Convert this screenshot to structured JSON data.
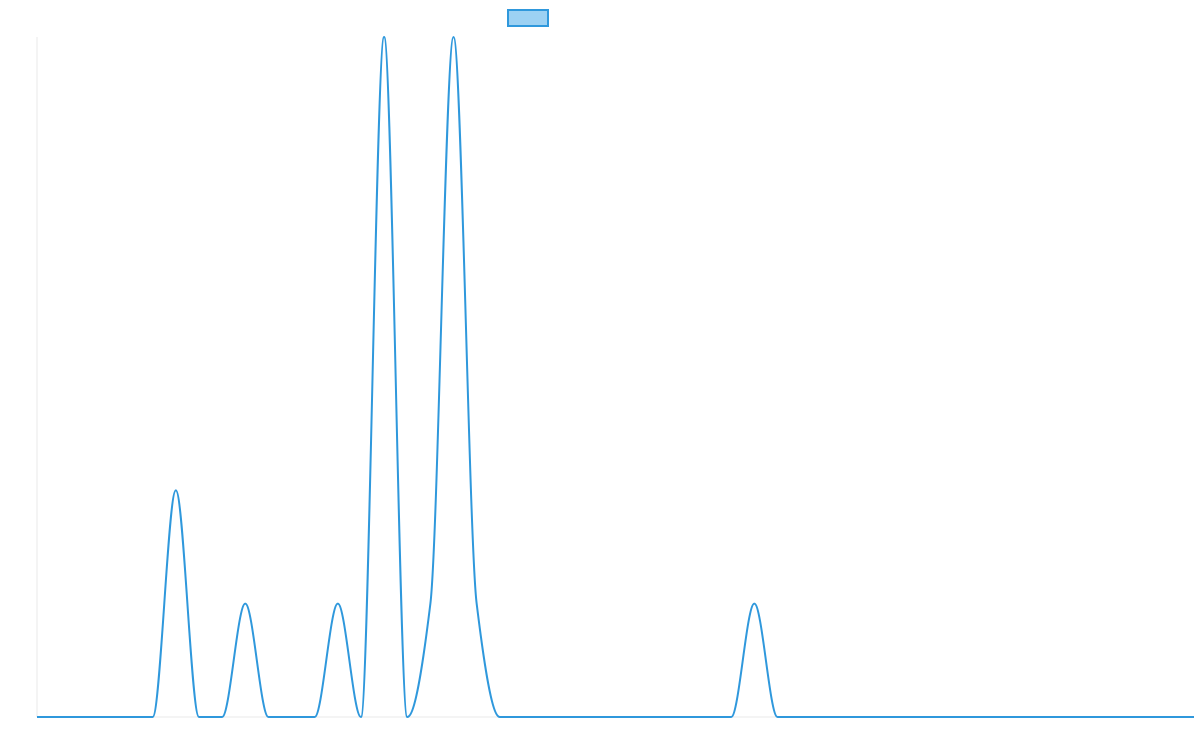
{
  "chart_data": {
    "type": "line",
    "title": "",
    "xlabel": "",
    "ylabel": "",
    "grid": false,
    "legend": {
      "placement": "top-center",
      "entries": [
        {
          "name": "",
          "swatch_fill": "#9cd1f3",
          "swatch_stroke": "#2f98dc"
        }
      ]
    },
    "xlim": [
      0,
      50
    ],
    "ylim": [
      0,
      30
    ],
    "series": [
      {
        "name": "",
        "color": "#2f98dc",
        "x": [
          0,
          1,
          2,
          3,
          4,
          5,
          6,
          7,
          8,
          9,
          10,
          11,
          12,
          13,
          14,
          15,
          16,
          17,
          18,
          19,
          20,
          21,
          22,
          23,
          24,
          25,
          26,
          27,
          28,
          29,
          30,
          31,
          32,
          33,
          34,
          35,
          36,
          37,
          38,
          39,
          40,
          41,
          42,
          43,
          44,
          45,
          46,
          47,
          48,
          49,
          50
        ],
        "y": [
          0,
          0,
          0,
          0,
          0,
          0,
          10,
          0,
          0,
          5,
          0,
          0,
          0,
          5,
          0,
          30,
          0,
          5,
          30,
          5,
          0,
          0,
          0,
          0,
          0,
          0,
          0,
          0,
          0,
          0,
          0,
          5,
          0,
          0,
          0,
          0,
          0,
          0,
          0,
          0,
          0,
          0,
          0,
          0,
          0,
          0,
          0,
          0,
          0,
          0,
          0
        ]
      }
    ]
  }
}
